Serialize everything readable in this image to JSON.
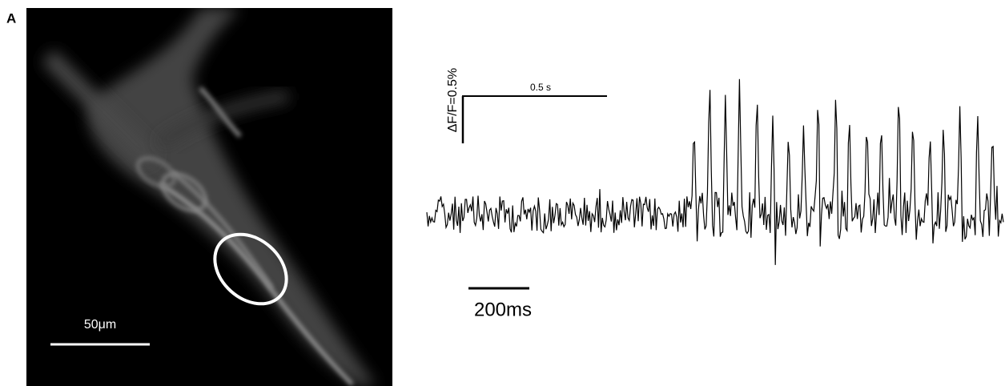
{
  "panel_label": "A",
  "image": {
    "scale_bar_label": "50μm"
  },
  "trace": {
    "time_scale_label": "0.5 s",
    "amplitude_scale_label": "ΔF/F=0.5%",
    "lower_time_scale_label": "200ms"
  }
}
